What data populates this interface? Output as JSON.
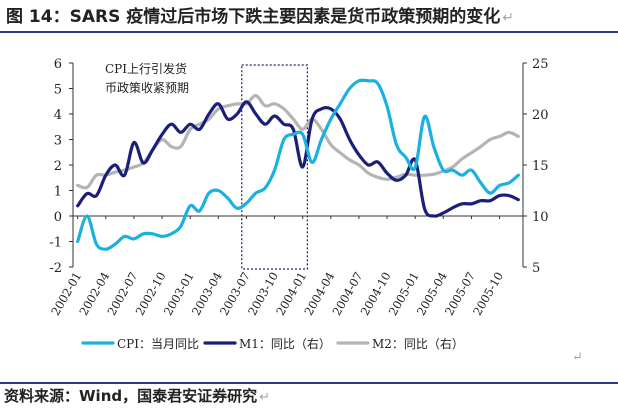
{
  "title": {
    "text": "图 14：SARS 疫情过后市场下跌主要因素是货币政策预期的变化",
    "end_mark": "↵"
  },
  "source": {
    "text": "资料来源：Wind，国泰君安证券研究",
    "end_mark": "↵"
  },
  "end_mark": "↵",
  "chart_data": {
    "type": "line",
    "title": "SARS 疫情过后市场下跌主要因素是货币政策预期的变化",
    "xlabel": "",
    "ylabel": "",
    "ylim": [
      -2,
      6
    ],
    "y_ticks": [
      "-2",
      "-1",
      "0",
      "1",
      "2",
      "3",
      "4",
      "5",
      "6"
    ],
    "y2lim": [
      5,
      25
    ],
    "y2_ticks": [
      "5",
      "10",
      "15",
      "20",
      "25"
    ],
    "x_tick_labels": [
      "2002-01",
      "2002-04",
      "2002-07",
      "2002-10",
      "2003-01",
      "2003-04",
      "2003-07",
      "2003-10",
      "2004-01",
      "2004-04",
      "2004-07",
      "2004-10",
      "2005-01",
      "2005-04",
      "2005-07",
      "2005-10"
    ],
    "x_tick_month_index": [
      0,
      3,
      6,
      9,
      12,
      15,
      18,
      21,
      24,
      27,
      30,
      33,
      36,
      39,
      42,
      45
    ],
    "month_count": 48,
    "annotation": {
      "lines": [
        "CPI上行引发货",
        "币政策收紧预期"
      ],
      "box_months": [
        17.5,
        24.5
      ]
    },
    "series": [
      {
        "name": "CPI：当月同比",
        "axis": "left",
        "color": "#1ab0e0",
        "values": [
          -1.0,
          0.0,
          -1.1,
          -1.3,
          -1.1,
          -0.8,
          -0.9,
          -0.7,
          -0.7,
          -0.8,
          -0.7,
          -0.4,
          0.4,
          0.2,
          0.9,
          1.0,
          0.7,
          0.3,
          0.5,
          0.9,
          1.1,
          1.8,
          3.0,
          3.2,
          3.2,
          2.1,
          3.0,
          3.8,
          4.4,
          5.0,
          5.3,
          5.3,
          5.2,
          4.3,
          2.8,
          2.3,
          1.9,
          3.9,
          2.7,
          1.8,
          1.8,
          1.6,
          1.8,
          1.3,
          0.9,
          1.2,
          1.3,
          1.6
        ]
      },
      {
        "name": "M1：同比（右）",
        "axis": "right",
        "color": "#1a1f7a",
        "values": [
          11.0,
          12.2,
          12.0,
          14.0,
          15.0,
          14.0,
          17.2,
          15.2,
          16.5,
          18.0,
          19.0,
          18.2,
          19.0,
          18.5,
          20.0,
          21.0,
          19.5,
          20.0,
          21.2,
          20.0,
          19.0,
          19.8,
          19.0,
          18.5,
          14.8,
          19.5,
          20.5,
          20.5,
          19.5,
          17.5,
          16.0,
          15.0,
          15.3,
          14.2,
          13.5,
          14.0,
          15.5,
          10.7,
          10.0,
          10.3,
          10.8,
          11.2,
          11.2,
          11.5,
          11.5,
          12.0,
          12.0,
          11.6
        ]
      },
      {
        "name": "M2：同比（右）",
        "axis": "right",
        "color": "#b4b4b4",
        "values": [
          13.0,
          12.8,
          14.0,
          14.0,
          14.3,
          14.5,
          14.8,
          15.2,
          16.5,
          17.5,
          16.8,
          16.8,
          18.5,
          19.0,
          19.5,
          20.5,
          20.8,
          21.0,
          21.0,
          21.8,
          20.8,
          21.0,
          20.5,
          19.5,
          18.5,
          19.5,
          18.5,
          17.0,
          16.2,
          15.5,
          15.0,
          14.2,
          13.8,
          13.6,
          13.8,
          14.1,
          14.0,
          14.0,
          14.1,
          14.4,
          14.8,
          15.6,
          16.2,
          16.8,
          17.5,
          17.8,
          18.2,
          17.8
        ]
      }
    ]
  }
}
